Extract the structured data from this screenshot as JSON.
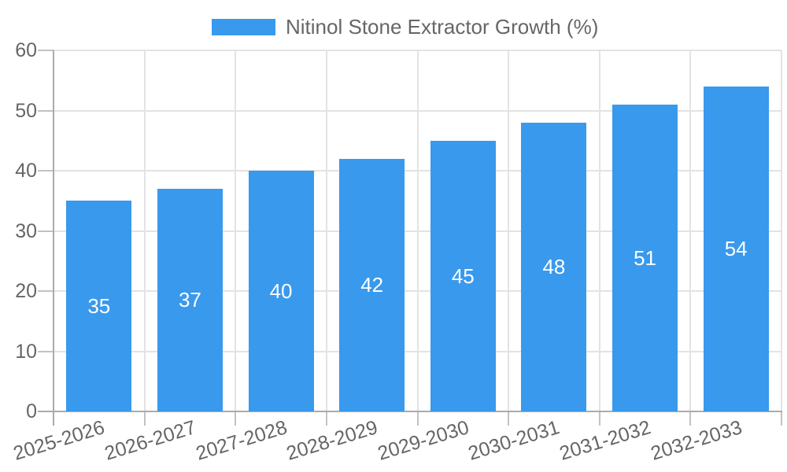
{
  "chart_data": {
    "type": "bar",
    "series_label": "Nitinol Stone Extractor Growth (%)",
    "categories": [
      "2025-2026",
      "2026-2027",
      "2027-2028",
      "2028-2029",
      "2029-2030",
      "2030-2031",
      "2031-2032",
      "2032-2033"
    ],
    "values": [
      35,
      37,
      40,
      42,
      45,
      48,
      51,
      54
    ],
    "yticks": [
      0,
      10,
      20,
      30,
      40,
      50,
      60
    ],
    "ylim": [
      0,
      60
    ],
    "grid": true,
    "legend_position": "top",
    "x_label_rotation_deg": -17,
    "colors": {
      "bar": "#3999ED",
      "bar_value_label": "#FFFFFF",
      "axis_text": "#666666",
      "gridline": "#E3E3E3",
      "axis_line": "#ABABAB",
      "tick": "#C2C2C2"
    }
  }
}
